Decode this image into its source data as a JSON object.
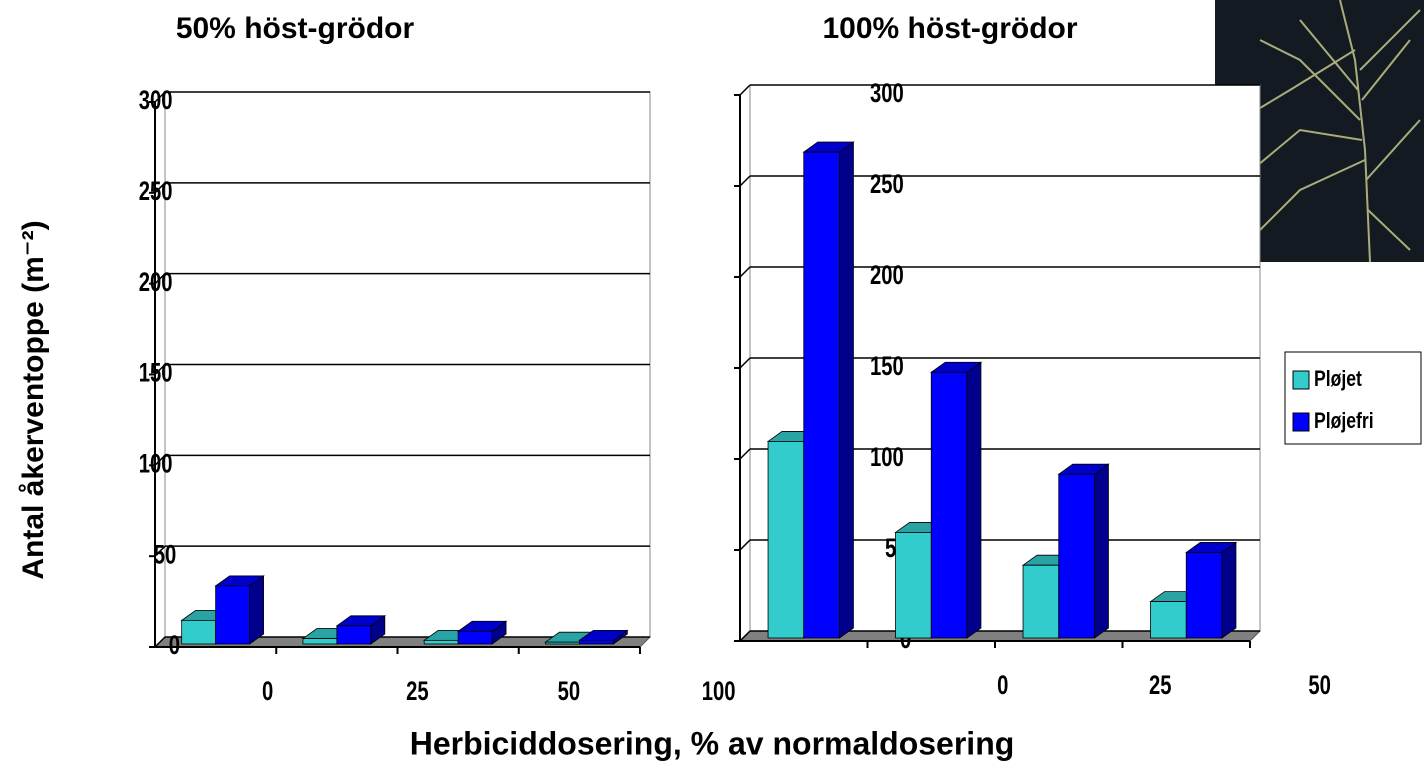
{
  "y_label": "Antal åkerventoppe (m⁻²)",
  "x_label": "Herbiciddosering, % av normaldosering",
  "chart_data": [
    {
      "type": "bar3d",
      "title": "50% höst-grödor",
      "categories": [
        "0",
        "25",
        "50",
        "100"
      ],
      "series": [
        {
          "color": "#33cccc",
          "values": [
            13,
            3,
            2,
            1
          ]
        },
        {
          "color": "#0000ff",
          "values": [
            32,
            10,
            7,
            2
          ]
        }
      ],
      "ylim": [
        0,
        300
      ],
      "yticks": [
        0,
        50,
        100,
        150,
        200,
        250,
        300
      ],
      "grid": true
    },
    {
      "type": "bar3d",
      "title": "100% höst-grödor",
      "categories": [
        "0",
        "25",
        "50",
        "100"
      ],
      "series": [
        {
          "name": "Pløjet",
          "color": "#33cccc",
          "values": [
            108,
            58,
            40,
            20
          ]
        },
        {
          "name": "Pløjefri",
          "color": "#0000ff",
          "values": [
            267,
            146,
            90,
            47
          ]
        }
      ],
      "ylim": [
        0,
        300
      ],
      "yticks": [
        0,
        50,
        100,
        150,
        200,
        250,
        300
      ],
      "grid": true,
      "legend": "right"
    }
  ]
}
